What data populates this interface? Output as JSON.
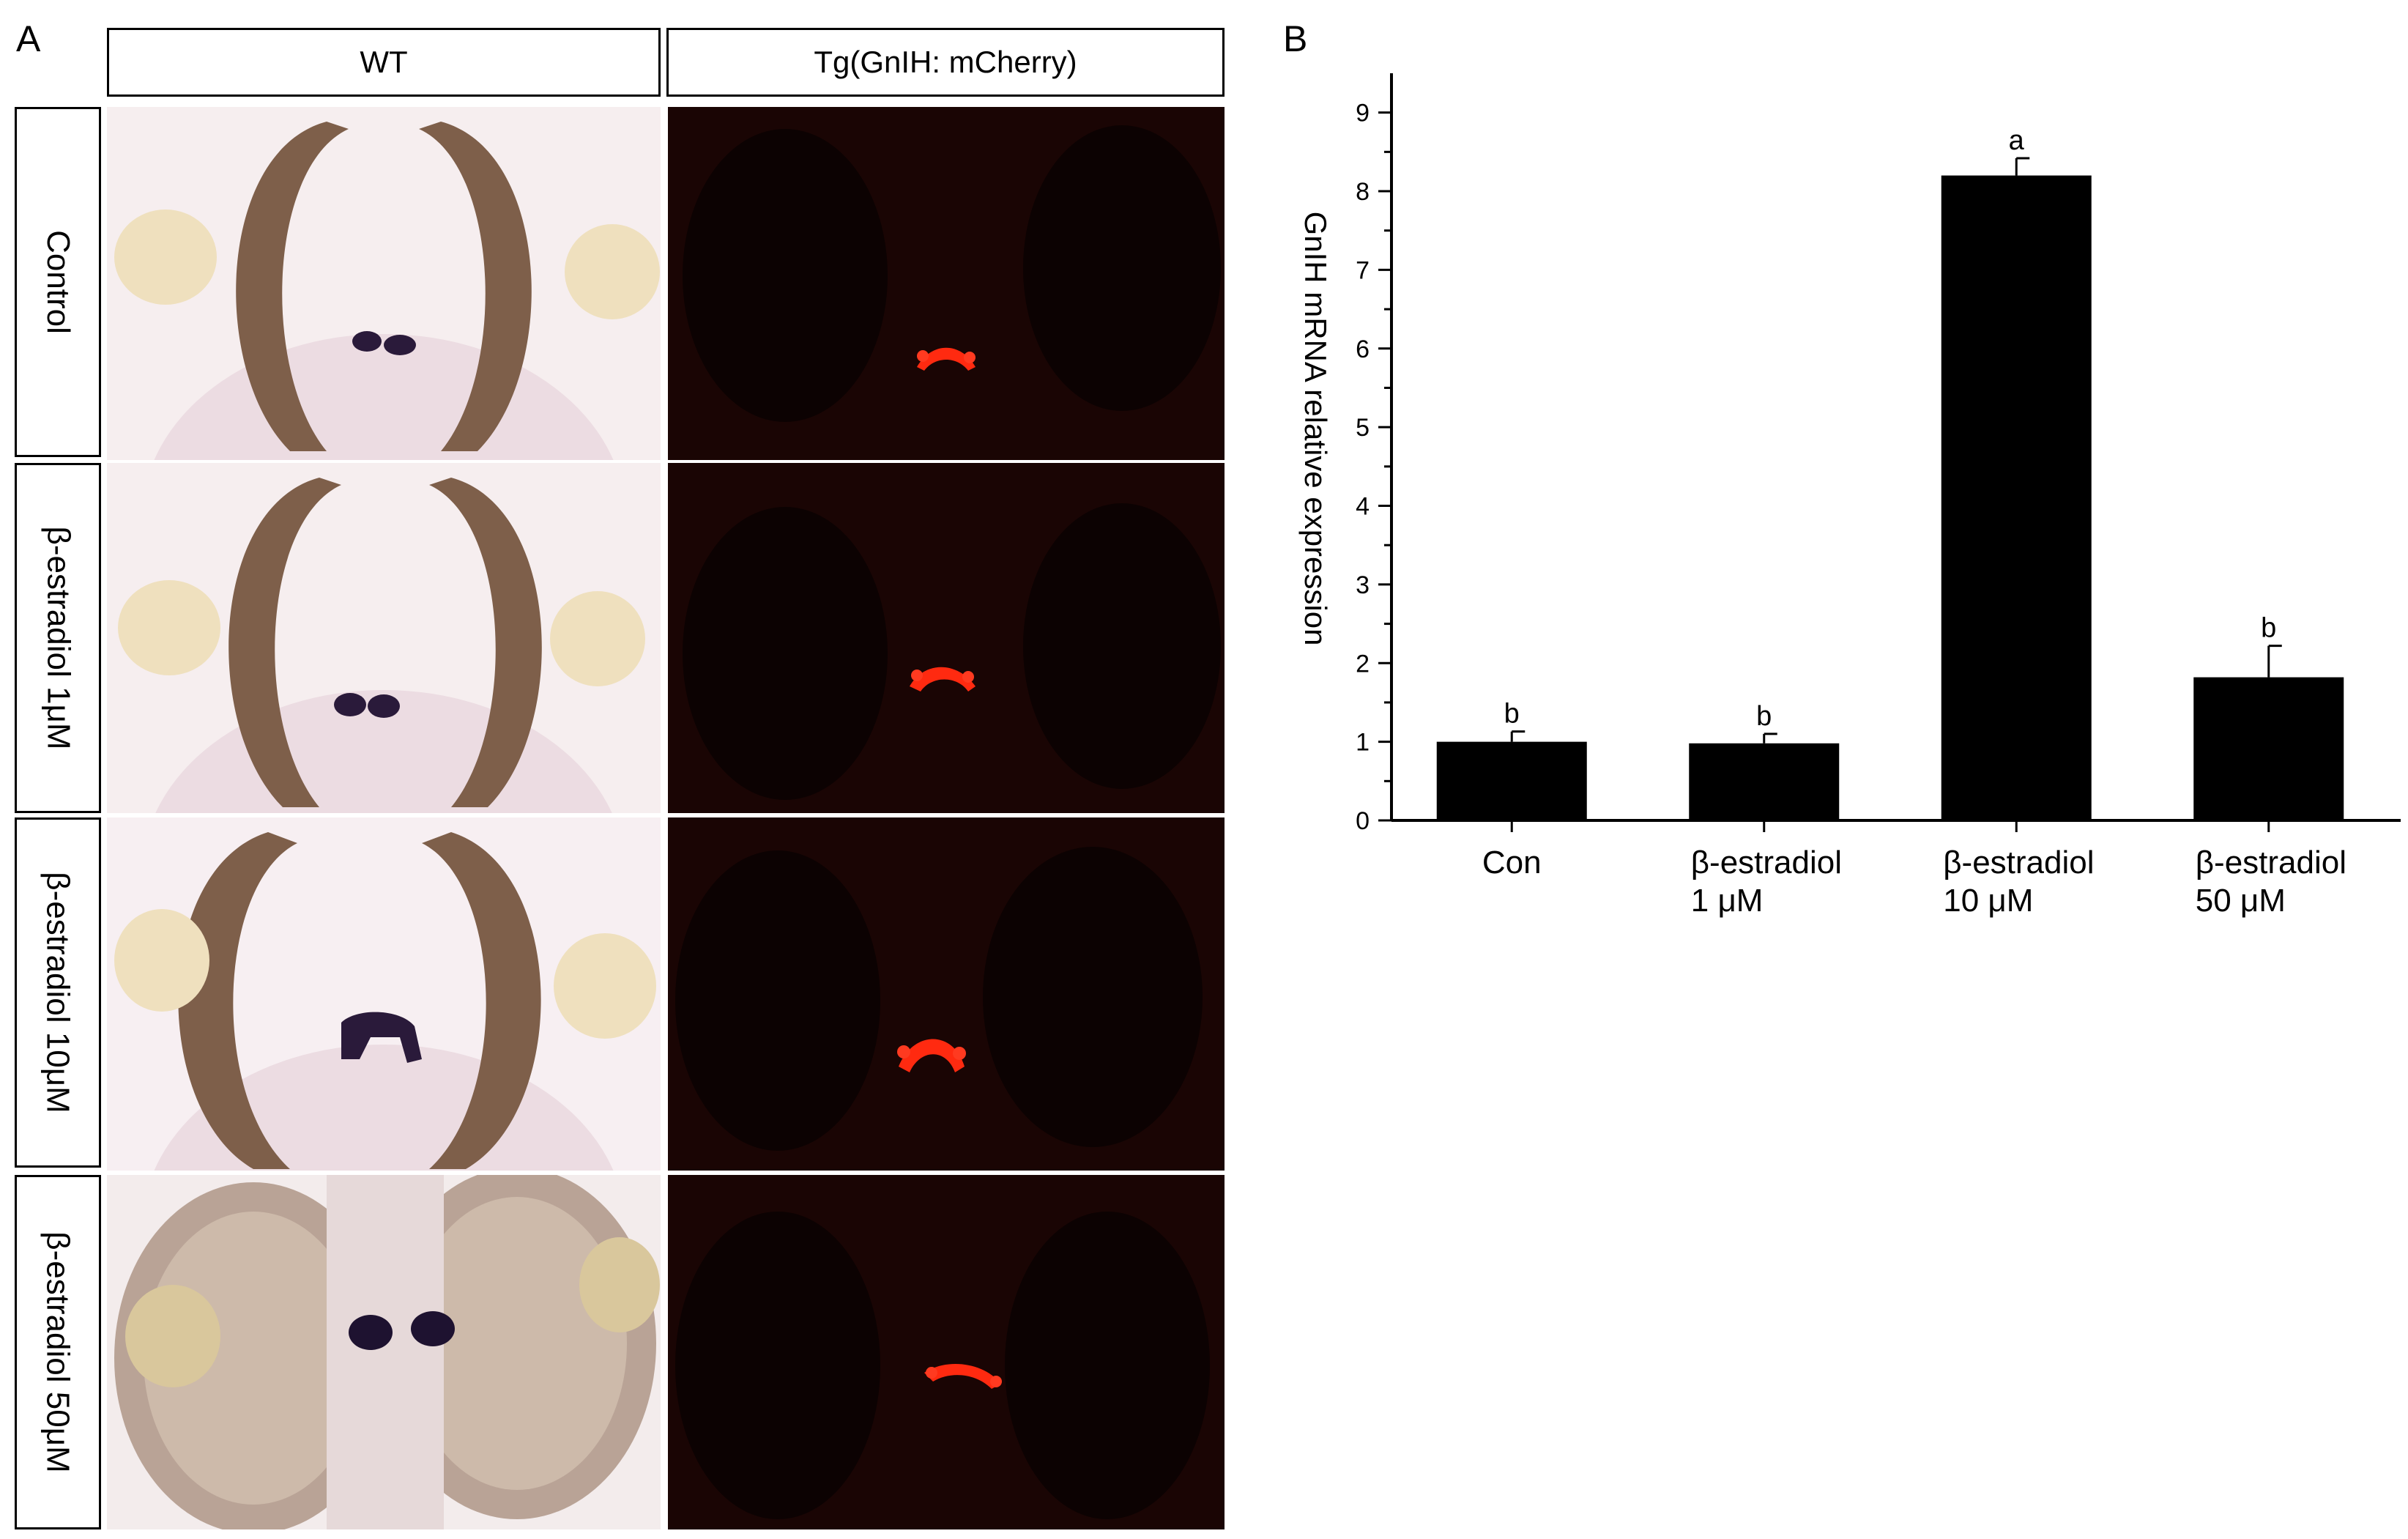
{
  "panel_a": {
    "letter": "A",
    "col_headers": [
      "WT",
      "Tg(GnIH: mCherry)"
    ],
    "row_labels": [
      "Control",
      "β-estradiol 1μM",
      "β-estradiol 10μM",
      "β-estradiol 50μM"
    ]
  },
  "panel_b": {
    "letter": "B"
  },
  "chart_data": {
    "type": "bar",
    "categories": [
      [
        "Con"
      ],
      [
        "β-estradiol",
        "1 μM"
      ],
      [
        "β-estradiol",
        "10 μM"
      ],
      [
        "β-estradiol",
        "50 μM"
      ]
    ],
    "values": [
      1.0,
      0.98,
      8.2,
      1.82
    ],
    "errors": [
      0.13,
      0.12,
      0.22,
      0.4
    ],
    "significance": [
      "b",
      "b",
      "a",
      "b"
    ],
    "ylabel": "GnIH mRNA relative expression",
    "ylim": [
      0,
      9.5
    ],
    "yticks": [
      "0",
      "1",
      "2",
      "3",
      "4",
      "5",
      "6",
      "7",
      "8",
      "9"
    ],
    "bar_color": "#000000",
    "grid": false
  }
}
